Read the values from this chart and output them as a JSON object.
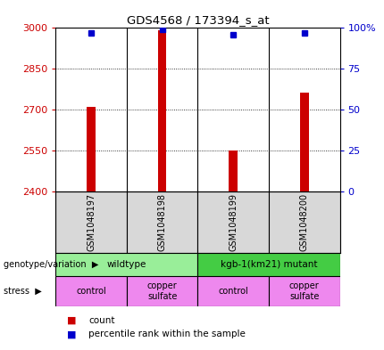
{
  "title": "GDS4568 / 173394_s_at",
  "samples": [
    "GSM1048197",
    "GSM1048198",
    "GSM1048199",
    "GSM1048200"
  ],
  "counts": [
    2712,
    2990,
    2549,
    2762
  ],
  "percentile_ranks": [
    97,
    99,
    96,
    97
  ],
  "ylim_left": [
    2400,
    3000
  ],
  "yticks_left": [
    2400,
    2550,
    2700,
    2850,
    3000
  ],
  "yticks_right": [
    0,
    25,
    50,
    75,
    100
  ],
  "ylim_right": [
    0,
    100
  ],
  "bar_color": "#cc0000",
  "dot_color": "#0000cc",
  "genotype_groups": [
    {
      "label": "wildtype",
      "cols": [
        0,
        1
      ],
      "color": "#99ee99"
    },
    {
      "label": "kgb-1(km21) mutant",
      "cols": [
        2,
        3
      ],
      "color": "#44cc44"
    }
  ],
  "stress_groups": [
    {
      "label": "control",
      "col": 0,
      "color": "#ee88ee"
    },
    {
      "label": "copper\nsulfate",
      "col": 1,
      "color": "#ee88ee"
    },
    {
      "label": "control",
      "col": 2,
      "color": "#ee88ee"
    },
    {
      "label": "copper\nsulfate",
      "col": 3,
      "color": "#ee88ee"
    }
  ],
  "bg_color": "#d8d8d8",
  "left_label_color": "#cc0000",
  "right_label_color": "#0000cc",
  "legend_count_color": "#cc0000",
  "legend_pct_color": "#0000cc"
}
